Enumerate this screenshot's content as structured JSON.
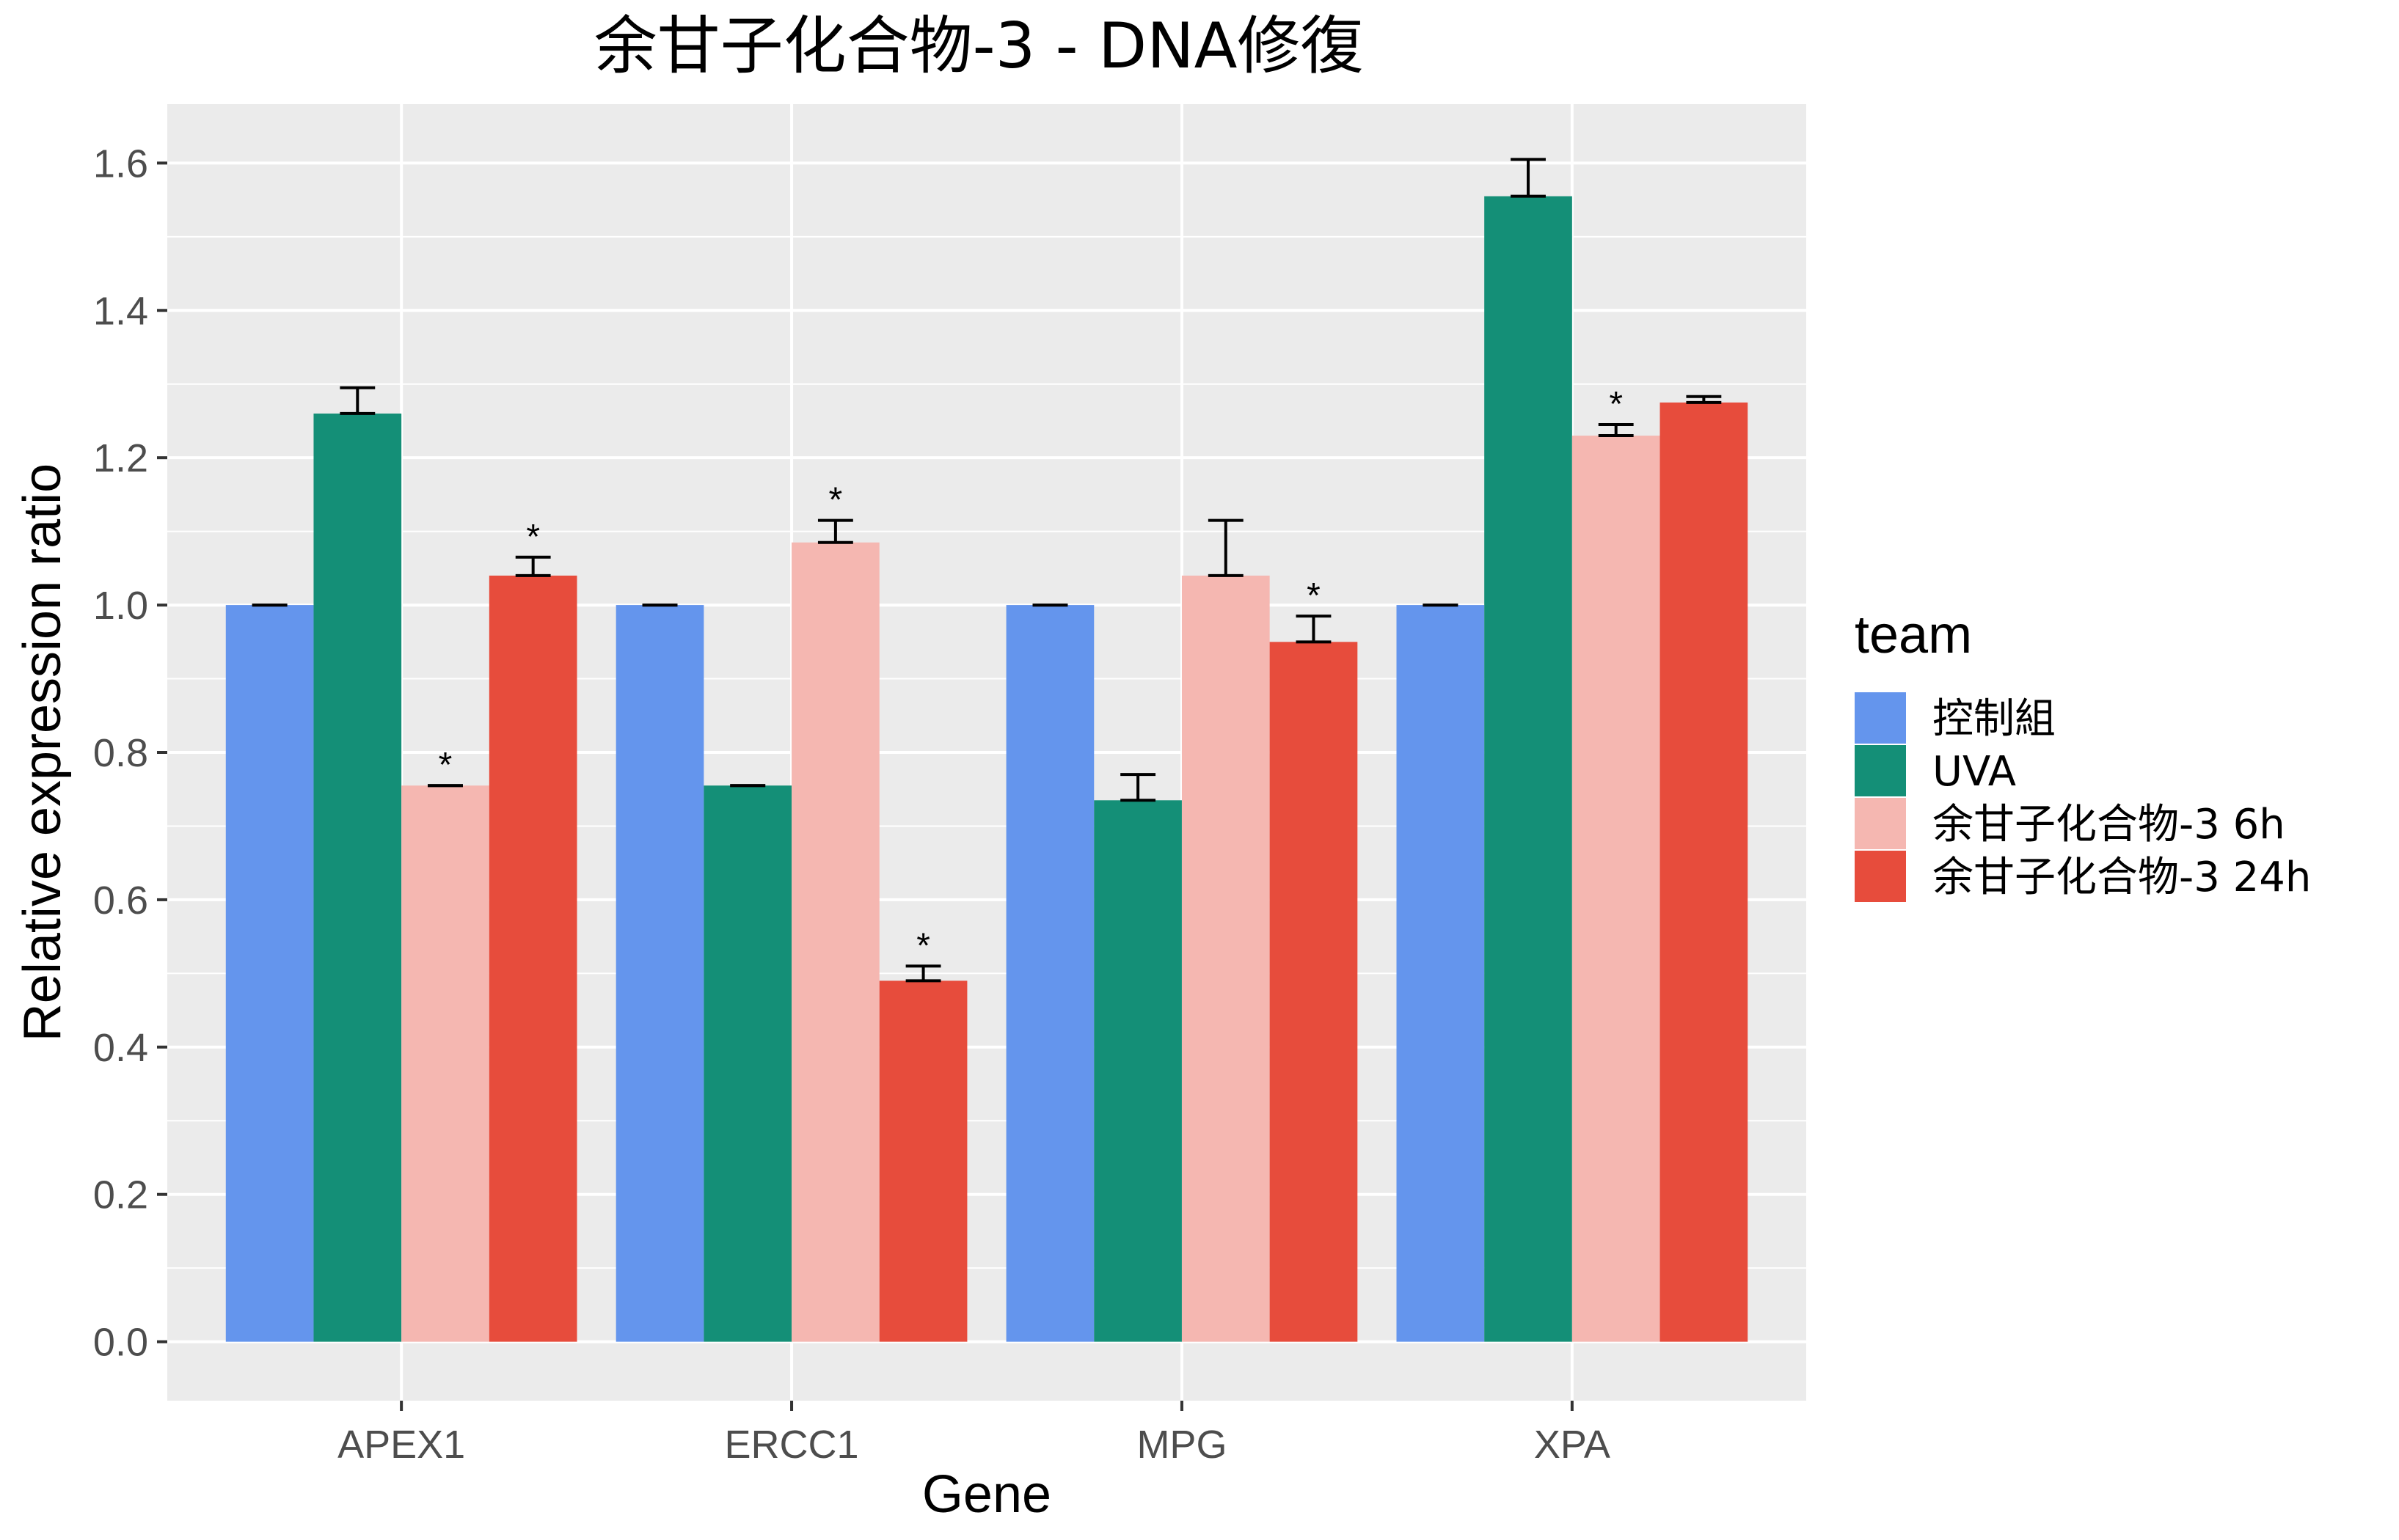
{
  "chart_data": {
    "type": "bar",
    "title": "余甘子化合物-3 - DNA修復",
    "xlabel": "Gene",
    "ylabel": "Relative expression ratio",
    "categories": [
      "APEX1",
      "ERCC1",
      "MPG",
      "XPA"
    ],
    "ylim": [
      -0.08,
      1.68
    ],
    "yticks": [
      0.0,
      0.2,
      0.4,
      0.6,
      0.8,
      1.0,
      1.2,
      1.4,
      1.6
    ],
    "ytick_labels": [
      "0.0",
      "0.2",
      "0.4",
      "0.6",
      "0.8",
      "1.0",
      "1.2",
      "1.4",
      "1.6"
    ],
    "grid": true,
    "legend": {
      "title": "team",
      "position": "right"
    },
    "significance_mark": "*",
    "series": [
      {
        "name": "控制組",
        "color": "#6495ED",
        "values": [
          1.0,
          1.0,
          1.0,
          1.0
        ],
        "errors": [
          0.0,
          0.0,
          0.0,
          0.0
        ],
        "significant": [
          false,
          false,
          false,
          false
        ]
      },
      {
        "name": "UVA",
        "color": "#148F77",
        "values": [
          1.26,
          0.755,
          0.735,
          1.555
        ],
        "errors": [
          0.035,
          0.0,
          0.035,
          0.05
        ],
        "significant": [
          false,
          false,
          false,
          false
        ]
      },
      {
        "name": "余甘子化合物-3 6h",
        "color": "#F5B7B1",
        "values": [
          0.755,
          1.085,
          1.04,
          1.23
        ],
        "errors": [
          0.0,
          0.03,
          0.075,
          0.015
        ],
        "significant": [
          true,
          true,
          false,
          true
        ]
      },
      {
        "name": "余甘子化合物-3 24h",
        "color": "#E74C3C",
        "values": [
          1.04,
          0.49,
          0.95,
          1.275
        ],
        "errors": [
          0.025,
          0.02,
          0.035,
          0.008
        ],
        "significant": [
          true,
          true,
          true,
          false
        ]
      }
    ]
  }
}
